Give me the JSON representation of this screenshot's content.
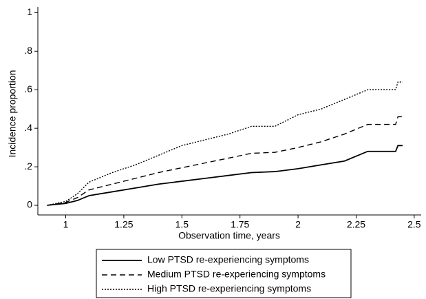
{
  "chart_data": {
    "type": "line",
    "x_label": "Observation time, years",
    "y_label": "Incidence proportion",
    "x": [
      0.92,
      1,
      1.05,
      1.1,
      1.2,
      1.3,
      1.4,
      1.5,
      1.6,
      1.7,
      1.8,
      1.9,
      2,
      2.1,
      2.2,
      2.3,
      2.42,
      2.43,
      2.45
    ],
    "series": [
      {
        "name": "Low PTSD re-experiencing symptoms",
        "color": "#000000",
        "style": "solid",
        "values": [
          0,
          0.01,
          0.025,
          0.05,
          0.07,
          0.09,
          0.11,
          0.125,
          0.14,
          0.155,
          0.17,
          0.175,
          0.19,
          0.21,
          0.23,
          0.28,
          0.28,
          0.31,
          0.31
        ]
      },
      {
        "name": "Medium PTSD re-experiencing symptoms",
        "color": "#000000",
        "style": "dashed",
        "values": [
          0,
          0.015,
          0.04,
          0.08,
          0.11,
          0.14,
          0.17,
          0.195,
          0.22,
          0.245,
          0.27,
          0.275,
          0.3,
          0.33,
          0.37,
          0.42,
          0.42,
          0.46,
          0.46
        ]
      },
      {
        "name": "High PTSD re-experiencing symptoms",
        "color": "#000000",
        "style": "dotted",
        "values": [
          0,
          0.02,
          0.06,
          0.12,
          0.17,
          0.21,
          0.26,
          0.31,
          0.34,
          0.37,
          0.41,
          0.41,
          0.47,
          0.5,
          0.55,
          0.6,
          0.6,
          0.64,
          0.64
        ]
      }
    ],
    "xlim": [
      0.88,
      2.53
    ],
    "ylim": [
      -0.05,
      1.03
    ],
    "xticks": [
      1,
      1.25,
      1.5,
      1.75,
      2,
      2.25,
      2.5
    ],
    "yticks": [
      0,
      {
        "value": 0.2,
        "label": ".2"
      },
      {
        "value": 0.4,
        "label": ".4"
      },
      {
        "value": 0.6,
        "label": ".6"
      },
      {
        "value": 0.8,
        "label": ".8"
      },
      1
    ],
    "legend": "bottom"
  }
}
